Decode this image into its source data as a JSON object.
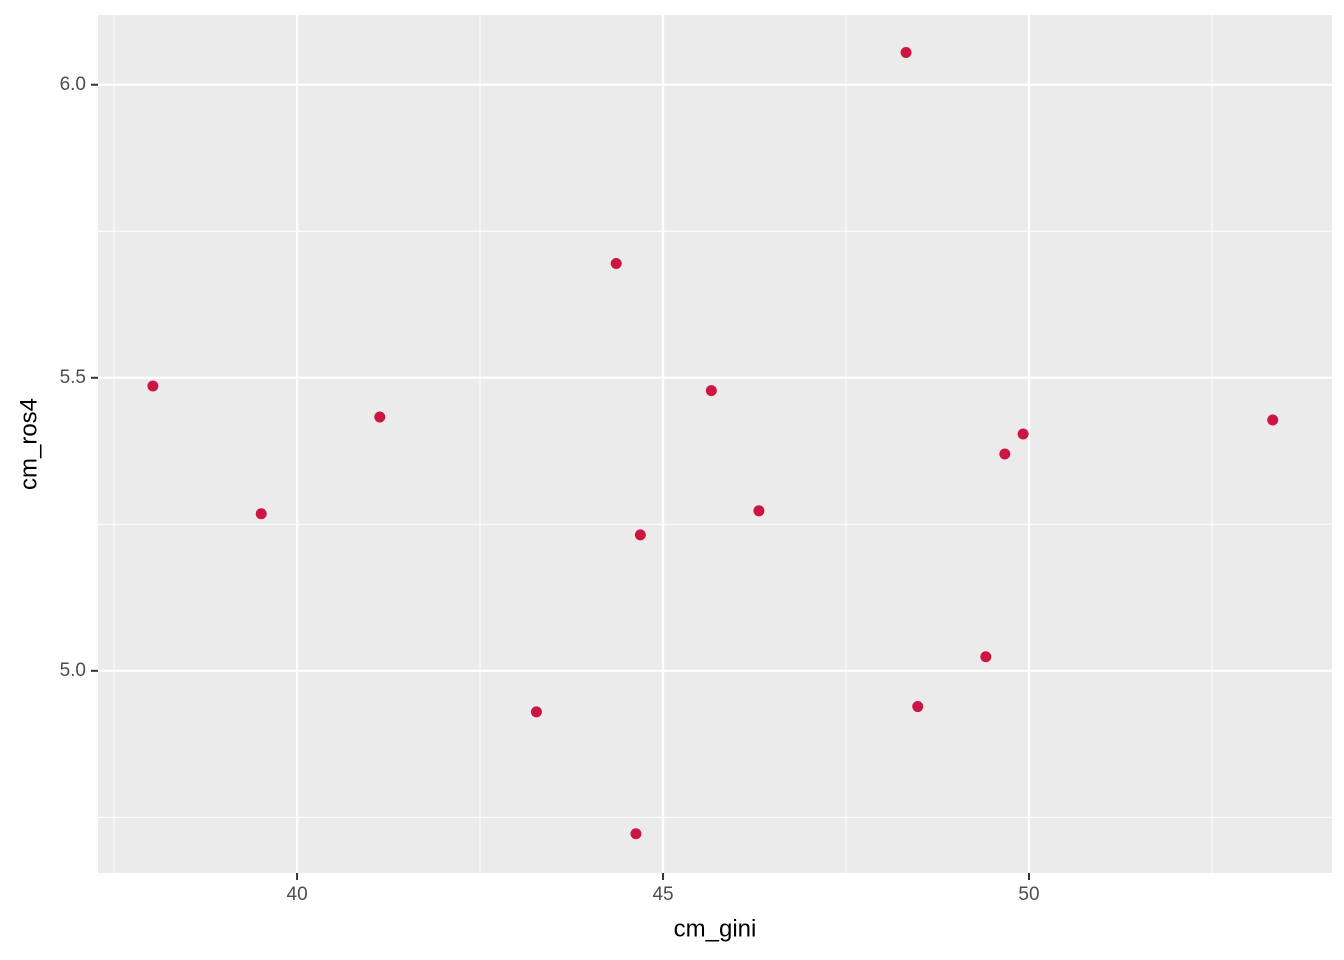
{
  "chart_data": {
    "type": "scatter",
    "x_label": "cm_gini",
    "y_label": "cm_ros4",
    "x": [
      38.03,
      39.51,
      41.13,
      43.27,
      44.36,
      44.69,
      44.63,
      45.66,
      46.31,
      48.32,
      48.48,
      49.41,
      49.67,
      49.92,
      53.33
    ],
    "values": [
      5.486,
      5.268,
      5.433,
      4.93,
      5.695,
      5.232,
      4.722,
      5.478,
      5.273,
      6.055,
      4.939,
      5.024,
      5.37,
      5.404,
      5.428
    ],
    "color": "#cd1543",
    "xlim": [
      37.28,
      54.14
    ],
    "ylim": [
      4.655,
      6.119
    ],
    "xticks": [
      40,
      45,
      50
    ],
    "yticks": [
      {
        "value": 5,
        "label": "5.0"
      },
      {
        "value": 5.5,
        "label": "5.5"
      },
      {
        "value": 6,
        "label": "6.0"
      }
    ],
    "grid": true
  }
}
